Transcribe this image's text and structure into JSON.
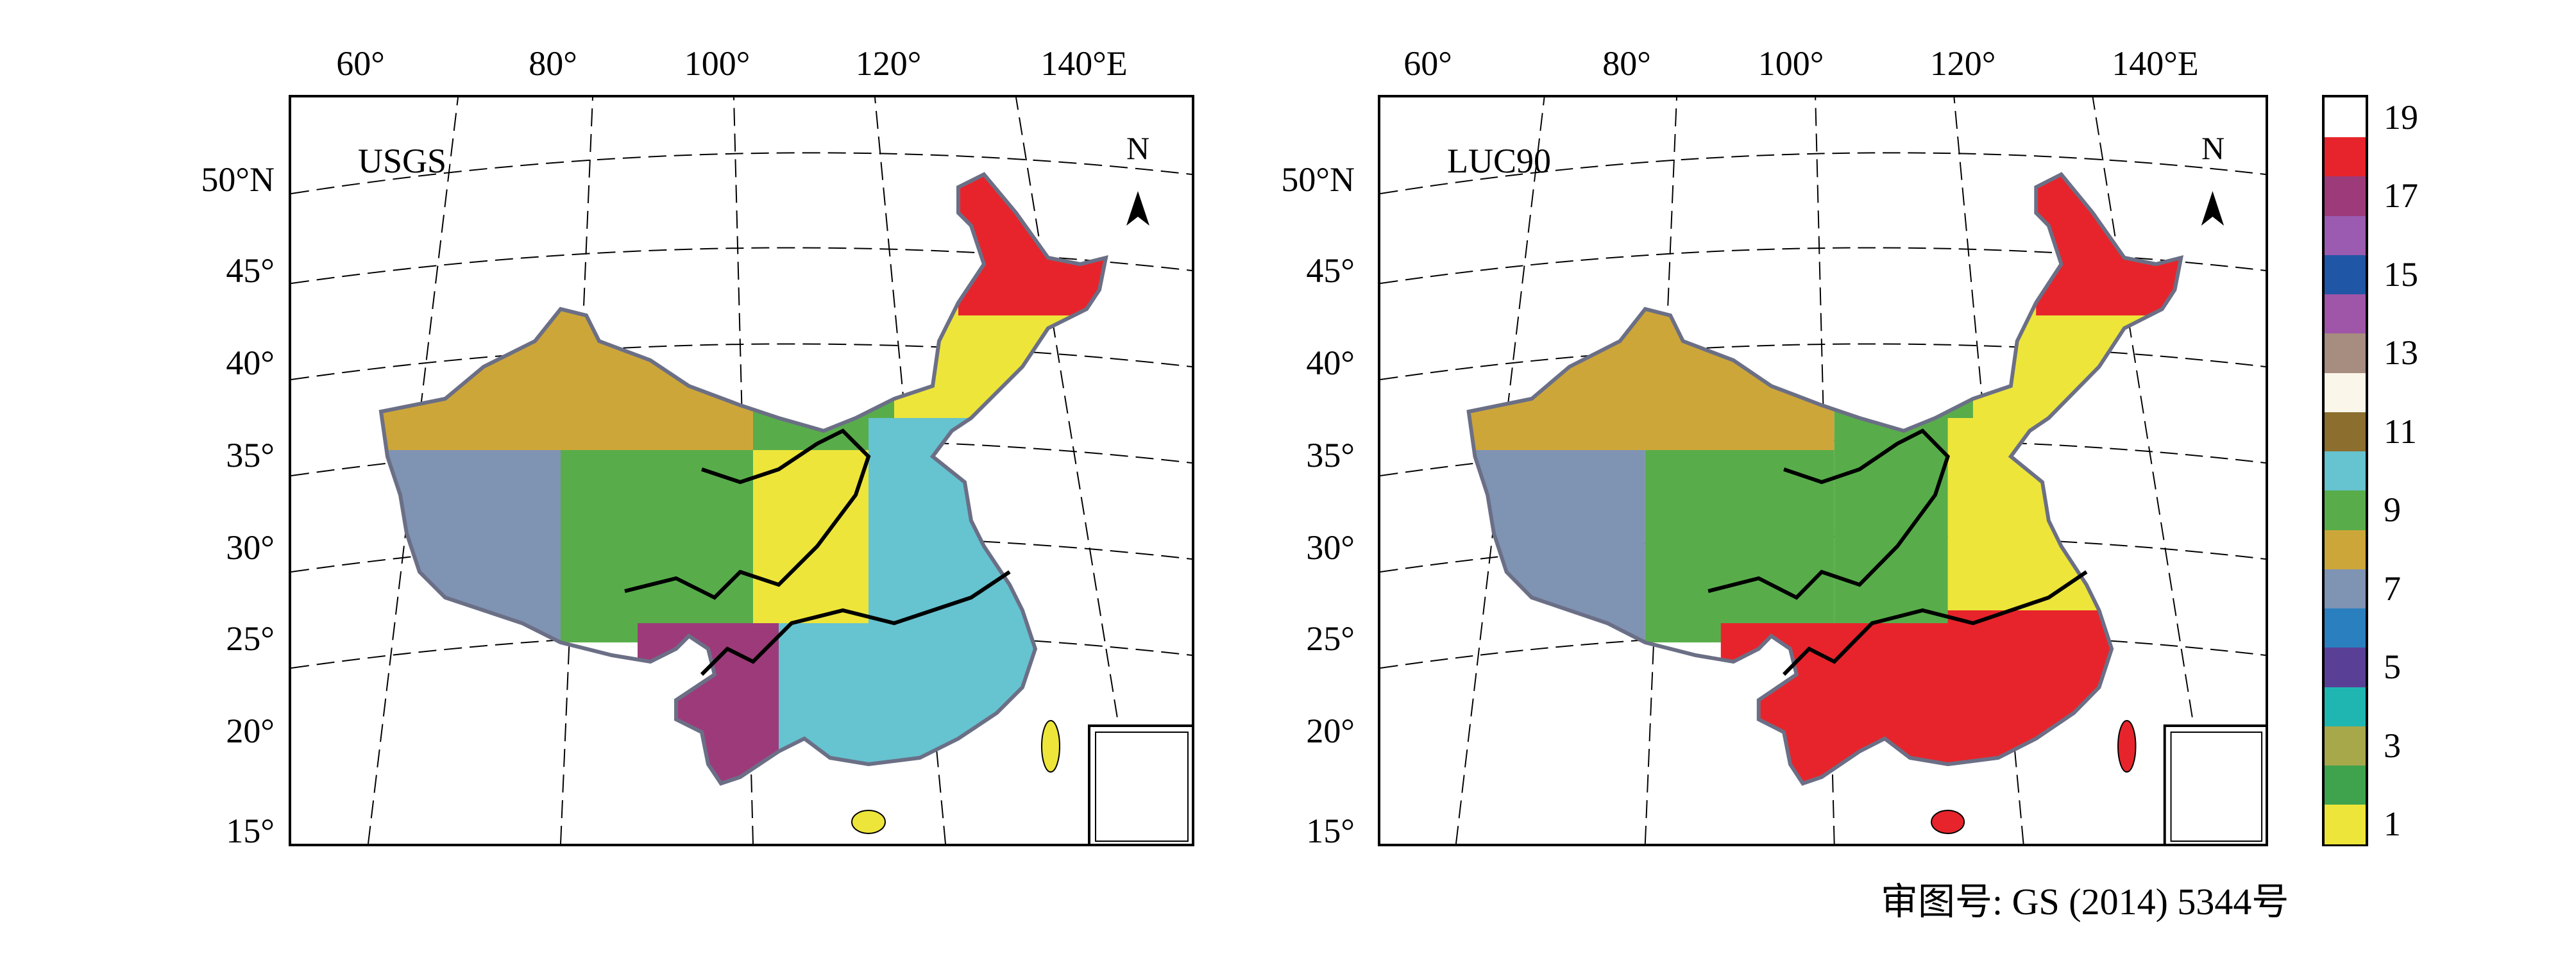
{
  "panels": [
    {
      "title": "USGS",
      "lon_ticks": [
        "60°",
        "80°",
        "100°",
        "120°",
        "140°E"
      ],
      "lat_ticks": [
        "50°N",
        "45°",
        "40°",
        "35°",
        "30°",
        "25°",
        "20°",
        "15°"
      ],
      "north": "N",
      "regions": [
        {
          "name": "northwest-basin",
          "class": 8
        },
        {
          "name": "tibet-west",
          "class": 7
        },
        {
          "name": "tibet-core",
          "class": 9
        },
        {
          "name": "inner-mongolia",
          "class": 9
        },
        {
          "name": "northeast-plain",
          "class": 1
        },
        {
          "name": "northeast-forest",
          "class": 18
        },
        {
          "name": "central-east",
          "class": 10
        },
        {
          "name": "south",
          "class": 10
        },
        {
          "name": "southwest",
          "class": 17
        },
        {
          "name": "sichuan",
          "class": 1
        }
      ]
    },
    {
      "title": "LUC90",
      "lon_ticks": [
        "60°",
        "80°",
        "100°",
        "120°",
        "140°E"
      ],
      "lat_ticks": [
        "50°N",
        "45°",
        "40°",
        "35°",
        "30°",
        "25°",
        "20°",
        "15°"
      ],
      "north": "N",
      "regions": [
        {
          "name": "northwest-basin",
          "class": 8
        },
        {
          "name": "tibet-west",
          "class": 7
        },
        {
          "name": "tibet-core",
          "class": 9
        },
        {
          "name": "inner-mongolia",
          "class": 9
        },
        {
          "name": "northeast-plain",
          "class": 1
        },
        {
          "name": "northeast-forest",
          "class": 18
        },
        {
          "name": "central-east",
          "class": 1
        },
        {
          "name": "south",
          "class": 18
        },
        {
          "name": "southwest",
          "class": 18
        },
        {
          "name": "sichuan",
          "class": 9
        }
      ]
    }
  ],
  "legend": {
    "labels": [
      "19",
      "17",
      "15",
      "13",
      "11",
      "9",
      "7",
      "5",
      "3",
      "1"
    ],
    "colors": {
      "1": "#ede53a",
      "2": "#3fa34d",
      "3": "#a7a84a",
      "4": "#1fb6b2",
      "5": "#5a3f97",
      "6": "#2a7fbf",
      "7": "#7f93b3",
      "8": "#cda63a",
      "9": "#58ad4a",
      "10": "#66c3d0",
      "11": "#8c6e2f",
      "12": "#fbf6ea",
      "13": "#a68d7f",
      "14": "#9f55a8",
      "15": "#1f56a6",
      "16": "#9a5bb0",
      "17": "#9d3a7a",
      "18": "#e7242b",
      "19": "#ffffff"
    }
  },
  "approval_text": "审图号: GS (2014) 5344号"
}
